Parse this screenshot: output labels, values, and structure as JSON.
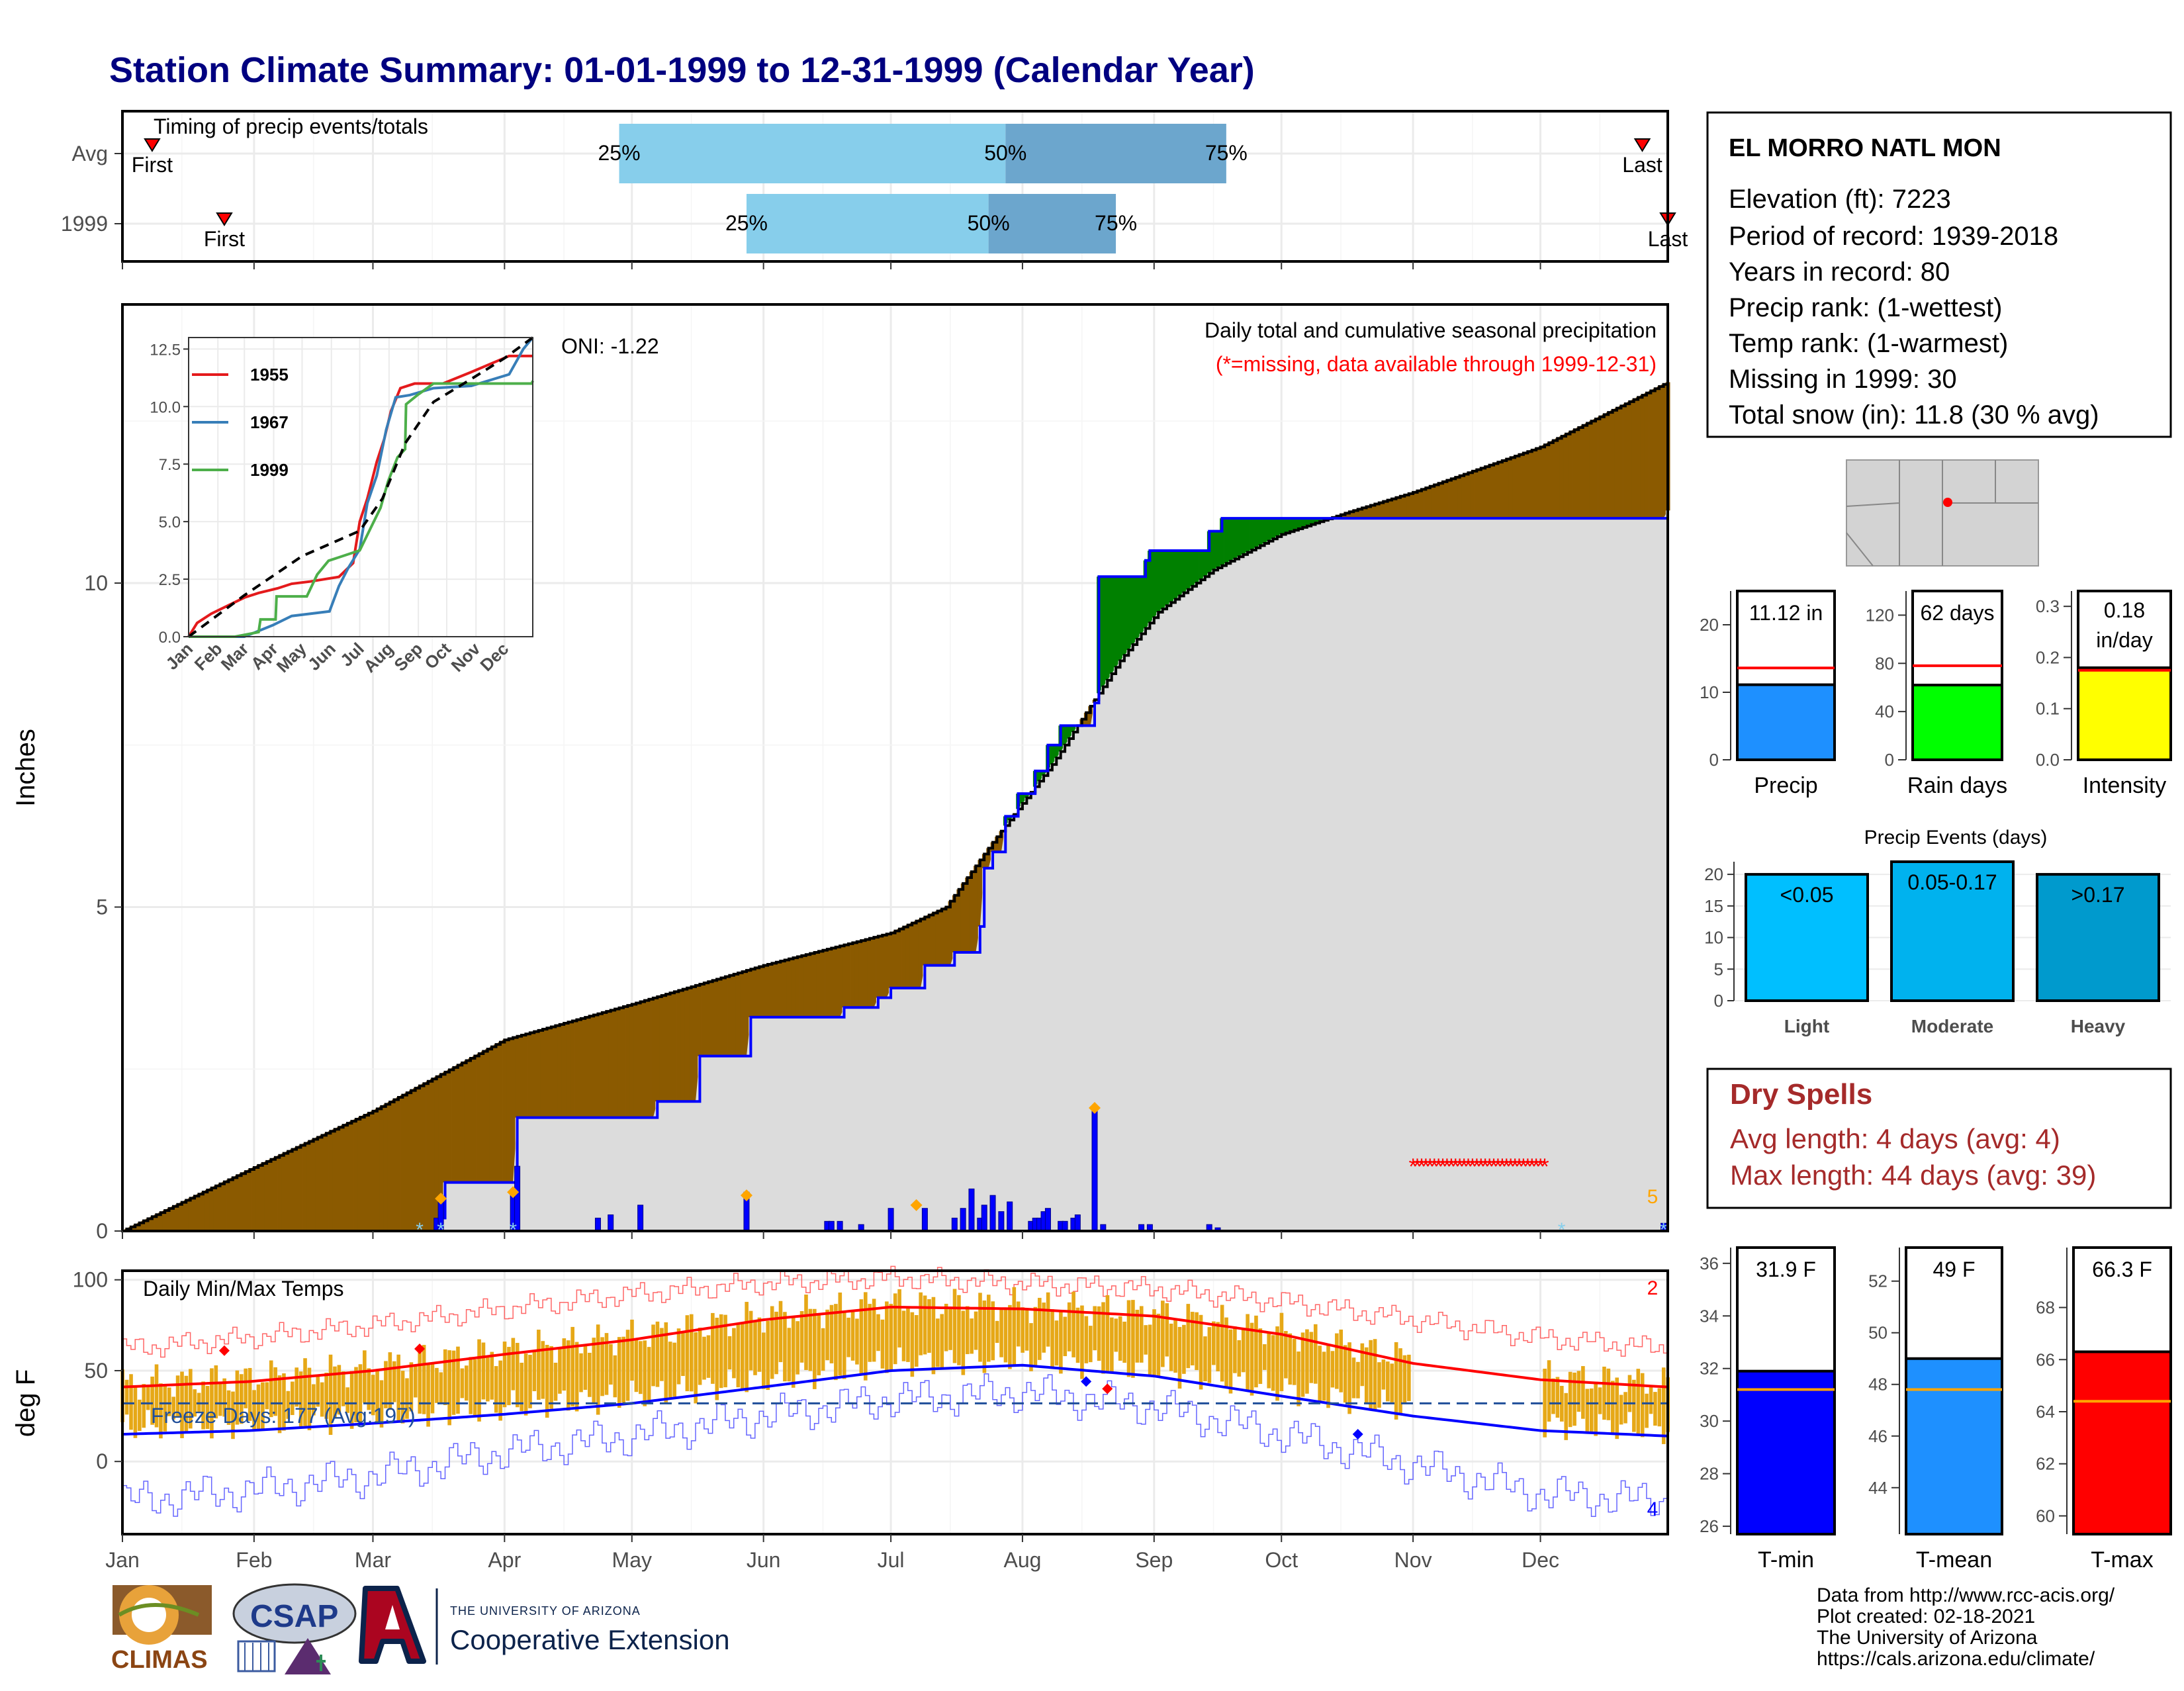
{
  "title": "Station Climate Summary: 01-01-1999 to 12-31-1999 (Calendar Year)",
  "colors": {
    "title": "#000080",
    "brown": "#8B5A00",
    "green": "#008000",
    "grey_fill": "#DCDCDC",
    "blue": "#0000FF",
    "light_blue": "#87CEEB",
    "steel_blue": "#6CA6CD",
    "orange": "#FFA500",
    "gold": "#E6A817",
    "red": "#FF0000",
    "dodger": "#1E90FF",
    "lime": "#00FF00",
    "yellow": "#FFFF00",
    "dry_red": "#A52A2A"
  },
  "months": [
    "Jan",
    "Feb",
    "Mar",
    "Apr",
    "May",
    "Jun",
    "Jul",
    "Aug",
    "Sep",
    "Oct",
    "Nov",
    "Dec"
  ],
  "station": {
    "name": "EL MORRO NATL MON",
    "lines": [
      "Elevation (ft): 7223",
      "Period of record: 1939-2018",
      "Years in record: 80",
      "Precip rank:  (1-wettest)",
      "Temp rank:  (1-warmest)",
      "Missing in 1999: 30",
      "Total snow (in): 11.8 (30 % avg)"
    ]
  },
  "dry_spells": {
    "title": "Dry Spells",
    "avg": "Avg length: 4 days (avg: 4)",
    "max": "Max length: 44 days (avg: 39)"
  },
  "footer": {
    "lines": [
      "Data from http://www.rcc-acis.org/",
      "Plot created: 02-18-2021",
      "The University of Arizona",
      "https://cals.arizona.edu/climate/"
    ],
    "logo_climas": "CLIMAS",
    "logo_csap": "CSAP",
    "ua_small": "THE UNIVERSITY OF ARIZONA",
    "ua_big": "Cooperative Extension"
  },
  "chart_data": [
    {
      "id": "timing",
      "type": "bar",
      "title": "Timing of precip events/totals",
      "rows": [
        {
          "label": "Avg",
          "first_doy": 8,
          "last_doy": 359,
          "first_label": "First",
          "last_label": "Last",
          "p25_doy": 118,
          "p50_doy": 209,
          "p75_doy": 261
        },
        {
          "label": "1999",
          "first_doy": 25,
          "last_doy": 365,
          "first_label": "First",
          "last_label": "Last",
          "p25_doy": 148,
          "p50_doy": 205,
          "p75_doy": 235
        }
      ],
      "pct_labels": [
        "25%",
        "50%",
        "75%"
      ]
    },
    {
      "id": "main_precip",
      "type": "area",
      "title": "Daily total and cumulative seasonal precipitation",
      "subtitle": "(*=missing, data available through 1999-12-31)",
      "oni": "ONI: -1.22",
      "ylabel": "Inches",
      "ylim": [
        0,
        14.3
      ],
      "yticks": [
        0,
        5,
        10
      ],
      "avg_cum": [
        [
          1,
          0
        ],
        [
          31,
          0.95
        ],
        [
          60,
          1.85
        ],
        [
          91,
          2.95
        ],
        [
          121,
          3.5
        ],
        [
          152,
          4.1
        ],
        [
          182,
          4.6
        ],
        [
          195,
          5.0
        ],
        [
          206,
          6.0
        ],
        [
          213,
          6.6
        ],
        [
          220,
          7.2
        ],
        [
          228,
          8.0
        ],
        [
          236,
          8.8
        ],
        [
          245,
          9.55
        ],
        [
          258,
          10.2
        ],
        [
          274,
          10.75
        ],
        [
          290,
          11.1
        ],
        [
          305,
          11.4
        ],
        [
          335,
          12.1
        ],
        [
          365,
          13.1
        ]
      ],
      "obs_cum": [
        [
          1,
          0
        ],
        [
          50,
          0
        ],
        [
          75,
          0
        ],
        [
          76,
          0.2
        ],
        [
          77,
          0.75
        ],
        [
          93,
          0.75
        ],
        [
          94,
          1.75
        ],
        [
          126,
          1.75
        ],
        [
          127,
          2.0
        ],
        [
          136,
          2.0
        ],
        [
          137,
          2.7
        ],
        [
          148,
          2.7
        ],
        [
          149,
          3.3
        ],
        [
          170,
          3.3
        ],
        [
          171,
          3.45
        ],
        [
          178,
          3.45
        ],
        [
          179,
          3.6
        ],
        [
          182,
          3.75
        ],
        [
          189,
          3.75
        ],
        [
          190,
          4.1
        ],
        [
          197,
          4.3
        ],
        [
          203,
          4.7
        ],
        [
          204,
          5.6
        ],
        [
          206,
          5.85
        ],
        [
          209,
          6.4
        ],
        [
          212,
          6.75
        ],
        [
          216,
          7.1
        ],
        [
          219,
          7.5
        ],
        [
          222,
          7.8
        ],
        [
          230,
          8.15
        ],
        [
          231,
          10.1
        ],
        [
          241,
          10.1
        ],
        [
          242,
          10.35
        ],
        [
          243,
          10.5
        ],
        [
          256,
          10.5
        ],
        [
          257,
          10.8
        ],
        [
          260,
          11.0
        ],
        [
          305,
          11.0
        ],
        [
          364,
          11.0
        ],
        [
          365,
          11.12
        ]
      ],
      "daily_bars": [
        [
          75,
          0.2
        ],
        [
          76,
          0.5
        ],
        [
          93,
          0.55
        ],
        [
          94,
          1.0
        ],
        [
          113,
          0.2
        ],
        [
          116,
          0.25
        ],
        [
          123,
          0.4
        ],
        [
          148,
          0.6
        ],
        [
          167,
          0.15
        ],
        [
          168,
          0.15
        ],
        [
          170,
          0.15
        ],
        [
          175,
          0.1
        ],
        [
          182,
          0.35
        ],
        [
          190,
          0.35
        ],
        [
          197,
          0.2
        ],
        [
          199,
          0.35
        ],
        [
          201,
          0.65
        ],
        [
          203,
          0.2
        ],
        [
          204,
          0.4
        ],
        [
          206,
          0.55
        ],
        [
          208,
          0.3
        ],
        [
          210,
          0.45
        ],
        [
          215,
          0.15
        ],
        [
          216,
          0.2
        ],
        [
          217,
          0.2
        ],
        [
          218,
          0.3
        ],
        [
          219,
          0.35
        ],
        [
          222,
          0.15
        ],
        [
          223,
          0.15
        ],
        [
          225,
          0.2
        ],
        [
          226,
          0.25
        ],
        [
          230,
          1.9
        ],
        [
          232,
          0.1
        ],
        [
          241,
          0.1
        ],
        [
          243,
          0.1
        ],
        [
          257,
          0.1
        ],
        [
          259,
          0.05
        ],
        [
          364,
          0.12
        ]
      ],
      "big_markers": [
        [
          76,
          0.5
        ],
        [
          93,
          0.6
        ],
        [
          148,
          0.55
        ],
        [
          188,
          0.4
        ],
        [
          230,
          1.9
        ]
      ],
      "snow_stars": [
        71,
        76,
        93,
        340,
        364
      ],
      "dry_spell": [
        305,
        336
      ],
      "dry_spell_y": 1.0,
      "corner_number": "5"
    },
    {
      "id": "inset",
      "type": "line",
      "ylim": [
        0,
        13
      ],
      "yticks": [
        "0.0",
        "2.5",
        "5.0",
        "7.5",
        "10.0",
        "12.5"
      ],
      "series": [
        {
          "name": "1955",
          "color": "#E41A1C",
          "values": [
            [
              1,
              0
            ],
            [
              10,
              0.6
            ],
            [
              25,
              1.0
            ],
            [
              45,
              1.4
            ],
            [
              60,
              1.7
            ],
            [
              75,
              1.9
            ],
            [
              95,
              2.1
            ],
            [
              110,
              2.3
            ],
            [
              130,
              2.4
            ],
            [
              160,
              2.6
            ],
            [
              175,
              3.2
            ],
            [
              182,
              5.0
            ],
            [
              190,
              6.0
            ],
            [
              200,
              7.6
            ],
            [
              208,
              8.6
            ],
            [
              215,
              9.8
            ],
            [
              225,
              10.8
            ],
            [
              240,
              11.0
            ],
            [
              270,
              11.0
            ],
            [
              300,
              11.5
            ],
            [
              340,
              12.2
            ],
            [
              365,
              12.2
            ]
          ]
        },
        {
          "name": "1967",
          "color": "#377EB8",
          "values": [
            [
              1,
              0
            ],
            [
              60,
              0
            ],
            [
              90,
              0.5
            ],
            [
              110,
              0.9
            ],
            [
              130,
              1.0
            ],
            [
              150,
              1.1
            ],
            [
              160,
              2.2
            ],
            [
              170,
              3.0
            ],
            [
              182,
              3.8
            ],
            [
              190,
              5.8
            ],
            [
              200,
              7.0
            ],
            [
              210,
              9.0
            ],
            [
              220,
              10.4
            ],
            [
              235,
              10.5
            ],
            [
              260,
              10.8
            ],
            [
              300,
              10.9
            ],
            [
              340,
              11.4
            ],
            [
              355,
              12.5
            ],
            [
              365,
              13.0
            ]
          ]
        },
        {
          "name": "1999",
          "color": "#4DAF4A",
          "values": [
            [
              1,
              0
            ],
            [
              50,
              0
            ],
            [
              75,
              0.2
            ],
            [
              77,
              0.75
            ],
            [
              93,
              0.75
            ],
            [
              94,
              1.75
            ],
            [
              126,
              1.75
            ],
            [
              137,
              2.7
            ],
            [
              149,
              3.3
            ],
            [
              182,
              3.75
            ],
            [
              204,
              5.6
            ],
            [
              212,
              6.75
            ],
            [
              222,
              7.8
            ],
            [
              230,
              8.15
            ],
            [
              231,
              10.1
            ],
            [
              243,
              10.5
            ],
            [
              260,
              11.0
            ],
            [
              364,
              11.0
            ],
            [
              365,
              11.12
            ]
          ]
        }
      ],
      "avg_line": [
        [
          1,
          0
        ],
        [
          60,
          1.8
        ],
        [
          121,
          3.5
        ],
        [
          182,
          4.6
        ],
        [
          206,
          6.0
        ],
        [
          230,
          8.4
        ],
        [
          260,
          10.2
        ],
        [
          300,
          11.2
        ],
        [
          335,
          12.1
        ],
        [
          365,
          13.0
        ]
      ]
    },
    {
      "id": "temps",
      "type": "line",
      "title": "Daily Min/Max Temps",
      "ylabel": "deg F",
      "ylim": [
        -40,
        105
      ],
      "yticks": [
        0,
        50,
        100
      ],
      "freeze_text": "Freeze Days: 177 (Avg:197)",
      "freeze_line": 32,
      "corner_top": "2",
      "corner_bottom": "4",
      "avg_max": [
        [
          1,
          41
        ],
        [
          31,
          44
        ],
        [
          60,
          50
        ],
        [
          91,
          59
        ],
        [
          121,
          67
        ],
        [
          152,
          78
        ],
        [
          182,
          85
        ],
        [
          213,
          84
        ],
        [
          244,
          80
        ],
        [
          274,
          70
        ],
        [
          305,
          54
        ],
        [
          335,
          45
        ],
        [
          365,
          41
        ]
      ],
      "avg_min": [
        [
          1,
          15
        ],
        [
          31,
          17
        ],
        [
          60,
          21
        ],
        [
          91,
          26
        ],
        [
          121,
          32
        ],
        [
          152,
          41
        ],
        [
          182,
          50
        ],
        [
          213,
          53
        ],
        [
          244,
          47
        ],
        [
          274,
          36
        ],
        [
          305,
          25
        ],
        [
          335,
          17
        ],
        [
          365,
          14
        ]
      ],
      "rec_max": [
        [
          1,
          62
        ],
        [
          31,
          68
        ],
        [
          60,
          75
        ],
        [
          91,
          84
        ],
        [
          121,
          92
        ],
        [
          152,
          98
        ],
        [
          182,
          101
        ],
        [
          213,
          98
        ],
        [
          244,
          95
        ],
        [
          274,
          88
        ],
        [
          305,
          78
        ],
        [
          335,
          68
        ],
        [
          365,
          62
        ]
      ],
      "rec_min": [
        [
          1,
          -22
        ],
        [
          31,
          -16
        ],
        [
          60,
          -8
        ],
        [
          91,
          5
        ],
        [
          121,
          14
        ],
        [
          152,
          25
        ],
        [
          182,
          34
        ],
        [
          213,
          38
        ],
        [
          244,
          30
        ],
        [
          274,
          15
        ],
        [
          305,
          -2
        ],
        [
          335,
          -18
        ],
        [
          365,
          -22
        ]
      ],
      "obs_high_pts": [
        [
          25,
          61
        ],
        [
          71,
          62
        ],
        [
          233,
          40
        ]
      ],
      "obs_low_pts": [
        [
          228,
          44
        ],
        [
          292,
          15
        ]
      ],
      "missing_ranges": [
        [
          305,
          335
        ]
      ]
    },
    {
      "id": "summary_bars",
      "type": "bar",
      "panels": [
        {
          "label": "Precip",
          "value": 11.12,
          "avg": 13.6,
          "ylim": [
            0,
            25
          ],
          "yticks": [
            0,
            10,
            20
          ],
          "value_label": "11.12 in",
          "color": "#1E90FF"
        },
        {
          "label": "Rain days",
          "value": 62,
          "avg": 78,
          "ylim": [
            0,
            140
          ],
          "yticks": [
            0,
            40,
            80,
            120
          ],
          "value_label": "62 days",
          "color": "#00FF00"
        },
        {
          "label": "Intensity",
          "value": 0.18,
          "avg": 0.175,
          "ylim": [
            0,
            0.33
          ],
          "yticks": [
            "0.0",
            "0.1",
            "0.2",
            "0.3"
          ],
          "value_label": "0.18 in/day",
          "color": "#FFFF00"
        }
      ]
    },
    {
      "id": "precip_events",
      "type": "bar",
      "title": "Precip Events (days)",
      "categories": [
        "Light",
        "Moderate",
        "Heavy"
      ],
      "value_labels": [
        "<0.05",
        "0.05-0.17",
        ">0.17"
      ],
      "values": [
        20,
        22,
        20
      ],
      "ylim": [
        0,
        22
      ],
      "yticks": [
        0,
        5,
        10,
        15,
        20
      ],
      "colors": [
        "#00BFFF",
        "#00B2EE",
        "#009ACD"
      ]
    },
    {
      "id": "temp_bars",
      "type": "bar",
      "panels": [
        {
          "label": "T-min",
          "value": 31.9,
          "avg": 31.2,
          "ylim": [
            25.7,
            36.6
          ],
          "yticks": [
            26,
            28,
            30,
            32,
            34,
            36
          ],
          "value_label": "31.9 F",
          "color": "#0000FF"
        },
        {
          "label": "T-mean",
          "value": 49,
          "avg": 47.8,
          "ylim": [
            42.2,
            53.3
          ],
          "yticks": [
            44,
            46,
            48,
            50,
            52
          ],
          "value_label": "49 F",
          "color": "#1E90FF"
        },
        {
          "label": "T-max",
          "value": 66.3,
          "avg": 64.4,
          "ylim": [
            59.3,
            70.3
          ],
          "yticks": [
            60,
            62,
            64,
            66,
            68
          ],
          "value_label": "66.3 F",
          "color": "#FF0000"
        }
      ]
    }
  ]
}
